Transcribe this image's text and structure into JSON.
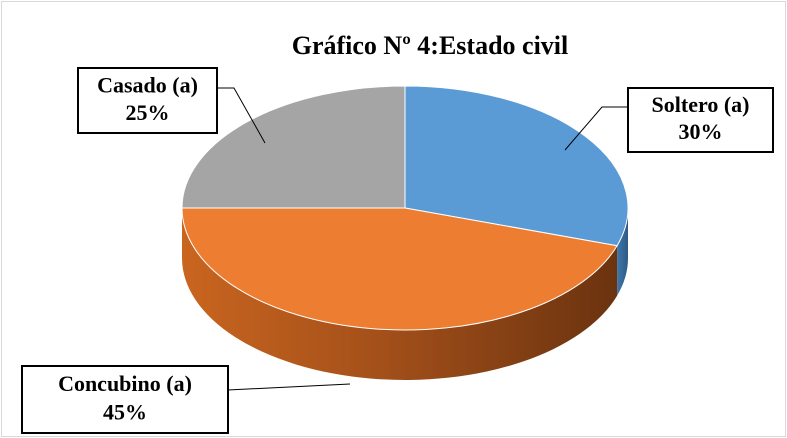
{
  "chart_data": {
    "type": "pie",
    "title": "Gráfico Nº 4:Estado civil",
    "categories": [
      "Soltero (a)",
      "Concubino (a)",
      "Casado (a)"
    ],
    "values": [
      30,
      45,
      25
    ],
    "value_labels": [
      "30%",
      "45%",
      "25%"
    ],
    "colors": [
      "#5b9bd5",
      "#ed7d31",
      "#a5a5a5"
    ]
  }
}
